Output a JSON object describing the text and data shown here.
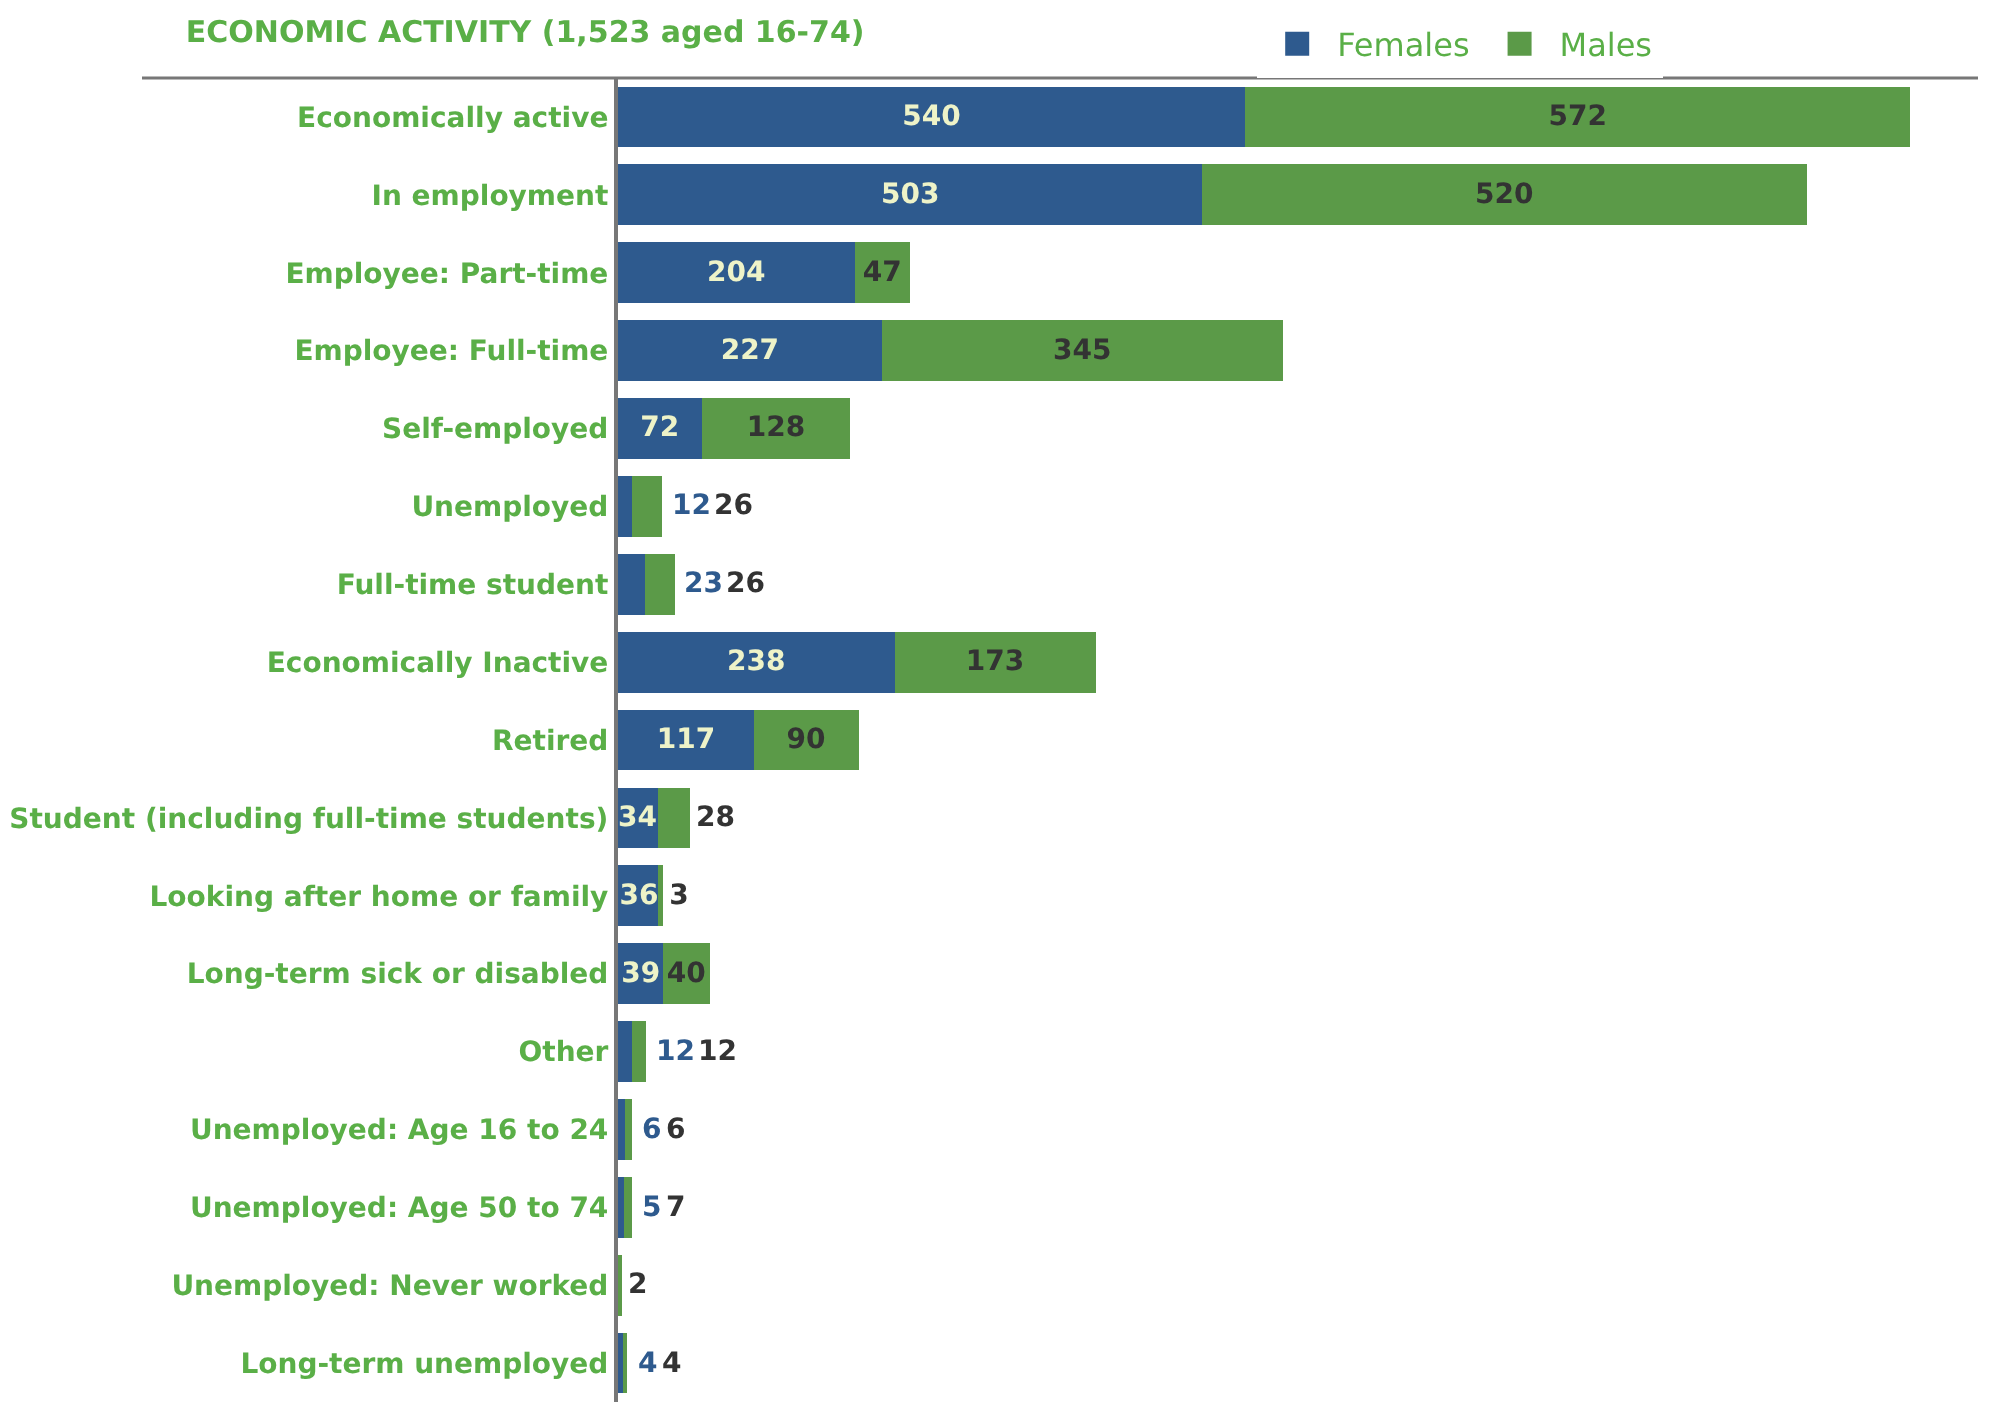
{
  "chart_data": {
    "type": "bar",
    "orientation": "horizontal",
    "stacked": true,
    "title": "ECONOMIC ACTIVITY (1,523 aged 16-74)",
    "categories": [
      "Economically active",
      "In employment",
      "Employee: Part-time",
      "Employee: Full-time",
      "Self-employed",
      "Unemployed",
      "Full-time student",
      "Economically Inactive",
      "Retired",
      "Student (including full-time students)",
      "Looking after home or family",
      "Long-term sick or disabled",
      "Other",
      "Unemployed: Age 16 to 24",
      "Unemployed: Age 50 to 74",
      "Unemployed: Never worked",
      "Long-term unemployed"
    ],
    "series": [
      {
        "name": "Females",
        "color": "#2e5a8e",
        "values": [
          540,
          503,
          204,
          227,
          72,
          12,
          23,
          238,
          117,
          34,
          36,
          39,
          12,
          6,
          5,
          null,
          4
        ]
      },
      {
        "name": "Males",
        "color": "#5b9a48",
        "values": [
          572,
          520,
          47,
          345,
          128,
          26,
          26,
          173,
          90,
          28,
          3,
          40,
          12,
          6,
          7,
          2,
          4
        ]
      }
    ],
    "data_labels": true,
    "legend": "top"
  }
}
